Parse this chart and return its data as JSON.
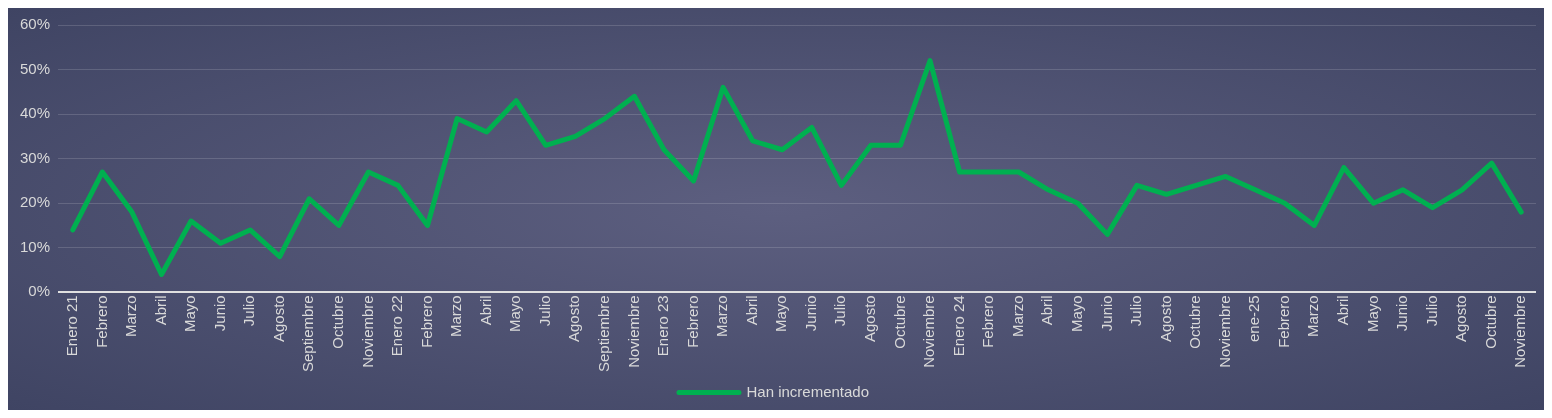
{
  "chart_data": {
    "type": "line",
    "categories": [
      "Enero 21",
      "Febrero",
      "Marzo",
      "Abril",
      "Mayo",
      "Junio",
      "Julio",
      "Agosto",
      "Septiembre",
      "Octubre",
      "Noviembre",
      "Enero 22",
      "Febrero",
      "Marzo",
      "Abril",
      "Mayo",
      "Julio",
      "Agosto",
      "Septiembre",
      "Noviembre",
      "Enero 23",
      "Febrero",
      "Marzo",
      "Abril",
      "Mayo",
      "Junio",
      "Julio",
      "Agosto",
      "Octubre",
      "Noviembre",
      "Enero 24",
      "Febrero",
      "Marzo",
      "Abril",
      "Mayo",
      "Junio",
      "Julio",
      "Agosto",
      "Octubre",
      "Noviembre",
      "ene-25",
      "Febrero",
      "Marzo",
      "Abril",
      "Mayo",
      "Junio",
      "Julio",
      "Agosto",
      "Octubre",
      "Noviembre"
    ],
    "series": [
      {
        "name": "Han incrementado",
        "color": "#00b050",
        "values": [
          14,
          27,
          18,
          4,
          16,
          11,
          14,
          8,
          21,
          15,
          27,
          24,
          15,
          39,
          36,
          43,
          33,
          35,
          39,
          44,
          32,
          25,
          46,
          34,
          32,
          37,
          24,
          33,
          33,
          52,
          27,
          27,
          27,
          23,
          20,
          13,
          24,
          22,
          24,
          26,
          23,
          20,
          15,
          28,
          20,
          23,
          19,
          23,
          29,
          18
        ]
      }
    ],
    "ylim": [
      0,
      60
    ],
    "yticks": [
      {
        "value": 0,
        "label": "0%"
      },
      {
        "value": 10,
        "label": "10%"
      },
      {
        "value": 20,
        "label": "20%"
      },
      {
        "value": 30,
        "label": "30%"
      },
      {
        "value": 40,
        "label": "40%"
      },
      {
        "value": 50,
        "label": "50%"
      },
      {
        "value": 60,
        "label": "60%"
      }
    ],
    "grid": "y",
    "legend": "bottom",
    "marker": "none",
    "line_style": "solid"
  }
}
